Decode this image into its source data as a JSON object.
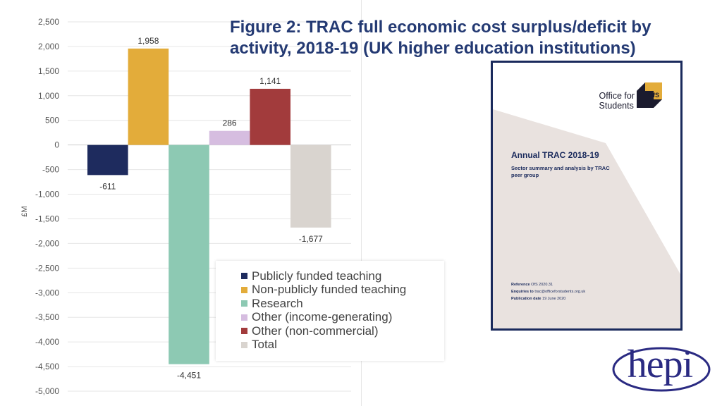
{
  "figure": {
    "title": "Figure 2: TRAC full economic cost surplus/deficit by activity, 2018-19 (UK higher education institutions)"
  },
  "chart_data": {
    "type": "bar",
    "ylabel": "£M",
    "xlabel": "",
    "ylim": [
      -5000,
      2500
    ],
    "yticks": [
      2500,
      2000,
      1500,
      1000,
      500,
      0,
      -500,
      -1000,
      -1500,
      -2000,
      -2500,
      -3000,
      -3500,
      -4000,
      -4500,
      -5000
    ],
    "ytick_labels": [
      "2,500",
      "2,000",
      "1,500",
      "1,000",
      "500",
      "0",
      "-500",
      "-1,000",
      "-1,500",
      "-2,000",
      "-2,500",
      "-3,000",
      "-3,500",
      "-4,000",
      "-4,500",
      "-5,000"
    ],
    "grid": true,
    "legend_position": "bottom-right",
    "categories": [
      "Publicly funded teaching",
      "Non-publicly funded teaching",
      "Research",
      "Other (income-generating)",
      "Other (non-commercial)",
      "Total"
    ],
    "values": [
      -611,
      1958,
      -4451,
      286,
      1141,
      -1677
    ],
    "data_labels": [
      "-611",
      "1,958",
      "-4,451",
      "286",
      "1,141",
      "-1,677"
    ],
    "colors": [
      "#1e2b5e",
      "#e3ac3a",
      "#8dc9b3",
      "#d6bde0",
      "#a23b3c",
      "#d9d4cf"
    ]
  },
  "report_cover": {
    "publisher_line1": "Office for",
    "publisher_line2": "Students",
    "logo_mark": "OfS",
    "title": "Annual TRAC 2018-19",
    "subtitle": "Sector summary and analysis by TRAC peer group",
    "reference_label": "Reference",
    "reference_value": "OfS 2020.31",
    "enquiries_label": "Enquiries to",
    "enquiries_value": "trac@officeforstudents.org.uk",
    "publication_label": "Publication date",
    "publication_value": "19 June 2020",
    "colors": {
      "border": "#1a2a5c",
      "shape": "#e9e2df",
      "logo_gold": "#e3ac3a",
      "logo_dark": "#1b1b2e"
    }
  },
  "hepi_logo": {
    "text": "hepi",
    "color": "#2a2a82"
  }
}
